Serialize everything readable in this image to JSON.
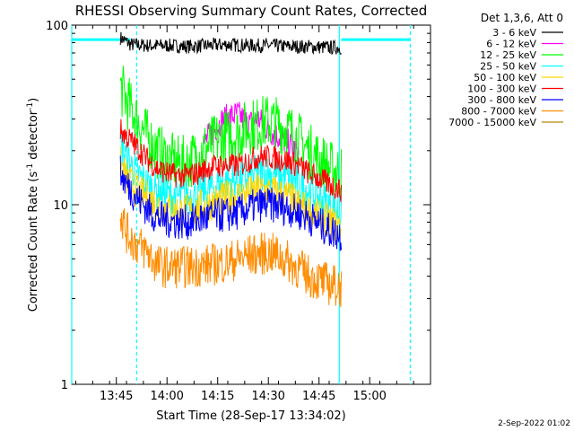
{
  "chart_data": {
    "type": "line",
    "title": "RHESSI Observing Summary Count Rates, Corrected",
    "xlabel": "Start Time (28-Sep-17 13:34:02)",
    "ylabel_main": "Corrected Count Rate (s",
    "ylabel_sup1": "-1",
    "ylabel_mid": " detector",
    "ylabel_sup2": "-1",
    "ylabel_end": ")",
    "y_scale": "log",
    "ylim": [
      1,
      100
    ],
    "xlim_minutes": [
      13.53,
      15.3
    ],
    "x_ticks": [
      {
        "label": "13:45",
        "value": 13.75
      },
      {
        "label": "14:00",
        "value": 14.0
      },
      {
        "label": "14:15",
        "value": 14.25
      },
      {
        "label": "14:30",
        "value": 14.5
      },
      {
        "label": "14:45",
        "value": 14.75
      },
      {
        "label": "15:00",
        "value": 15.0
      }
    ],
    "y_ticks": [
      {
        "label": "1",
        "value": 1
      },
      {
        "label": "10",
        "value": 10
      },
      {
        "label": "100",
        "value": 100
      }
    ],
    "legend_title": "Det 1,3,6, Att 0",
    "legend_position": "top-right outside",
    "footer_date": "2-Sep-2022 01:02",
    "series": [
      {
        "name": "3 - 6 keV",
        "color": "#000000",
        "points": [
          [
            13.77,
            85
          ],
          [
            13.82,
            78
          ],
          [
            13.9,
            77
          ],
          [
            14.0,
            77
          ],
          [
            14.1,
            76
          ],
          [
            14.2,
            77
          ],
          [
            14.3,
            78
          ],
          [
            14.4,
            77
          ],
          [
            14.5,
            77
          ],
          [
            14.6,
            76
          ],
          [
            14.7,
            76
          ],
          [
            14.8,
            75
          ],
          [
            14.86,
            75
          ]
        ]
      },
      {
        "name": "6 - 12 keV",
        "color": "#ff00ff",
        "points": [
          [
            14.18,
            22
          ],
          [
            14.22,
            25
          ],
          [
            14.28,
            30
          ],
          [
            14.35,
            32
          ],
          [
            14.4,
            28
          ],
          [
            14.45,
            30
          ],
          [
            14.5,
            26
          ],
          [
            14.55,
            24
          ],
          [
            14.6,
            22
          ],
          [
            14.65,
            19
          ]
        ]
      },
      {
        "name": "12 - 25 keV",
        "color": "#00ff00",
        "points": [
          [
            13.77,
            45
          ],
          [
            13.8,
            38
          ],
          [
            13.85,
            30
          ],
          [
            13.9,
            24
          ],
          [
            13.95,
            20
          ],
          [
            14.0,
            18
          ],
          [
            14.05,
            17
          ],
          [
            14.1,
            17
          ],
          [
            14.15,
            19
          ],
          [
            14.2,
            21
          ],
          [
            14.25,
            23
          ],
          [
            14.3,
            24
          ],
          [
            14.35,
            25
          ],
          [
            14.4,
            27
          ],
          [
            14.45,
            28
          ],
          [
            14.5,
            29
          ],
          [
            14.55,
            28
          ],
          [
            14.6,
            26
          ],
          [
            14.65,
            23
          ],
          [
            14.7,
            20
          ],
          [
            14.75,
            18
          ],
          [
            14.8,
            16
          ],
          [
            14.86,
            15
          ]
        ]
      },
      {
        "name": "25 - 50 keV",
        "color": "#00ffff",
        "points": [
          [
            13.77,
            22
          ],
          [
            13.8,
            18
          ],
          [
            13.85,
            15
          ],
          [
            13.9,
            13
          ],
          [
            13.95,
            12
          ],
          [
            14.0,
            11.5
          ],
          [
            14.05,
            11
          ],
          [
            14.1,
            11
          ],
          [
            14.15,
            11.5
          ],
          [
            14.2,
            12
          ],
          [
            14.25,
            13
          ],
          [
            14.3,
            13.5
          ],
          [
            14.35,
            13.5
          ],
          [
            14.4,
            14
          ],
          [
            14.45,
            15
          ],
          [
            14.5,
            15
          ],
          [
            14.55,
            14.5
          ],
          [
            14.6,
            14
          ],
          [
            14.65,
            13
          ],
          [
            14.7,
            12
          ],
          [
            14.75,
            11
          ],
          [
            14.8,
            10
          ],
          [
            14.86,
            9
          ]
        ]
      },
      {
        "name": "50 - 100 keV",
        "color": "#ffd700",
        "points": [
          [
            13.77,
            17
          ],
          [
            13.8,
            14
          ],
          [
            13.85,
            12
          ],
          [
            13.9,
            11
          ],
          [
            13.95,
            10
          ],
          [
            14.0,
            9.5
          ],
          [
            14.05,
            9.2
          ],
          [
            14.1,
            9.2
          ],
          [
            14.15,
            9.6
          ],
          [
            14.2,
            10
          ],
          [
            14.25,
            10.5
          ],
          [
            14.3,
            11
          ],
          [
            14.35,
            11.2
          ],
          [
            14.4,
            11.5
          ],
          [
            14.45,
            12
          ],
          [
            14.5,
            12
          ],
          [
            14.55,
            11.6
          ],
          [
            14.6,
            11
          ],
          [
            14.65,
            10
          ],
          [
            14.7,
            9.2
          ],
          [
            14.75,
            8.5
          ],
          [
            14.8,
            8
          ],
          [
            14.86,
            7.5
          ]
        ]
      },
      {
        "name": "100 - 300 keV",
        "color": "#ff0000",
        "points": [
          [
            13.77,
            26
          ],
          [
            13.8,
            24
          ],
          [
            13.85,
            21
          ],
          [
            13.9,
            18
          ],
          [
            13.95,
            16
          ],
          [
            14.0,
            15
          ],
          [
            14.05,
            14.5
          ],
          [
            14.1,
            14.5
          ],
          [
            14.15,
            15
          ],
          [
            14.2,
            16
          ],
          [
            14.25,
            16.5
          ],
          [
            14.3,
            16.5
          ],
          [
            14.35,
            16.5
          ],
          [
            14.4,
            17.5
          ],
          [
            14.45,
            18.5
          ],
          [
            14.5,
            18.5
          ],
          [
            14.55,
            18
          ],
          [
            14.6,
            17.5
          ],
          [
            14.65,
            16.5
          ],
          [
            14.7,
            15
          ],
          [
            14.75,
            14
          ],
          [
            14.8,
            13
          ],
          [
            14.86,
            12
          ]
        ]
      },
      {
        "name": "300 - 800 keV",
        "color": "#0000ff",
        "points": [
          [
            13.77,
            15
          ],
          [
            13.8,
            13
          ],
          [
            13.85,
            11
          ],
          [
            13.9,
            9.5
          ],
          [
            13.95,
            8.5
          ],
          [
            14.0,
            8.2
          ],
          [
            14.05,
            8
          ],
          [
            14.1,
            8
          ],
          [
            14.15,
            8.2
          ],
          [
            14.2,
            8.5
          ],
          [
            14.25,
            8.7
          ],
          [
            14.3,
            8.8
          ],
          [
            14.35,
            9
          ],
          [
            14.4,
            9.5
          ],
          [
            14.45,
            10
          ],
          [
            14.5,
            10
          ],
          [
            14.55,
            9.8
          ],
          [
            14.6,
            9.5
          ],
          [
            14.65,
            9
          ],
          [
            14.7,
            8.5
          ],
          [
            14.75,
            7.8
          ],
          [
            14.8,
            7.2
          ],
          [
            14.86,
            6.8
          ]
        ]
      },
      {
        "name": "800 - 7000 keV",
        "color": "#ff8c00",
        "points": [
          [
            13.77,
            9
          ],
          [
            13.8,
            7
          ],
          [
            13.85,
            6
          ],
          [
            13.9,
            5.5
          ],
          [
            13.95,
            4.6
          ],
          [
            14.0,
            4.5
          ],
          [
            14.1,
            4.5
          ],
          [
            14.2,
            4.6
          ],
          [
            14.3,
            4.8
          ],
          [
            14.4,
            5.2
          ],
          [
            14.5,
            5.4
          ],
          [
            14.55,
            5.2
          ],
          [
            14.6,
            4.8
          ],
          [
            14.7,
            4.0
          ],
          [
            14.8,
            3.6
          ],
          [
            14.86,
            3.5
          ]
        ]
      },
      {
        "name": "7000 - 15000 keV",
        "color": "#b8860b",
        "points": []
      }
    ]
  }
}
